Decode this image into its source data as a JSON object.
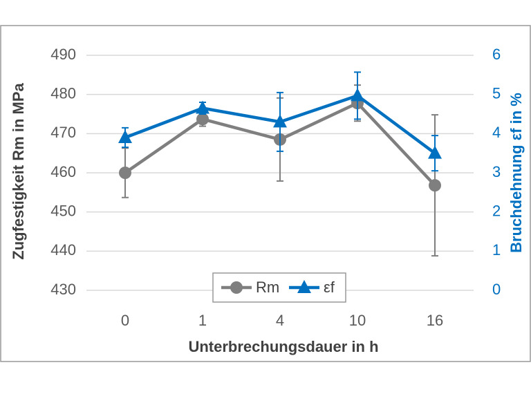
{
  "chart_data": {
    "type": "line",
    "x_label": "Unterbrechungsdauer in h",
    "y_label": "Zugfestigkeit Rm in MPa",
    "y2_label": "Bruchdehnung εf in %",
    "categories": [
      "0",
      "1",
      "4",
      "10",
      "16"
    ],
    "series": [
      {
        "name": "Rm",
        "color": "#7f7f7f",
        "marker": "circle",
        "values": [
          460,
          473.7,
          468.5,
          477.8,
          456.8
        ],
        "errors": [
          6.3,
          1.8,
          10.6,
          4.6,
          18
        ]
      },
      {
        "name": "εf",
        "color": "#0070c0",
        "marker": "triangle",
        "axis": "y2",
        "values": [
          3.9,
          4.65,
          4.3,
          4.97,
          3.5
        ],
        "errors": [
          0.25,
          0.15,
          0.75,
          0.6,
          0.45
        ]
      }
    ],
    "ylim": [
      430,
      490
    ],
    "yticks": [
      430,
      440,
      450,
      460,
      470,
      480,
      490
    ],
    "y2lim": [
      0,
      6
    ],
    "y2ticks": [
      0,
      1,
      2,
      3,
      4,
      5,
      6
    ],
    "grid": true,
    "legend": "bottom"
  }
}
